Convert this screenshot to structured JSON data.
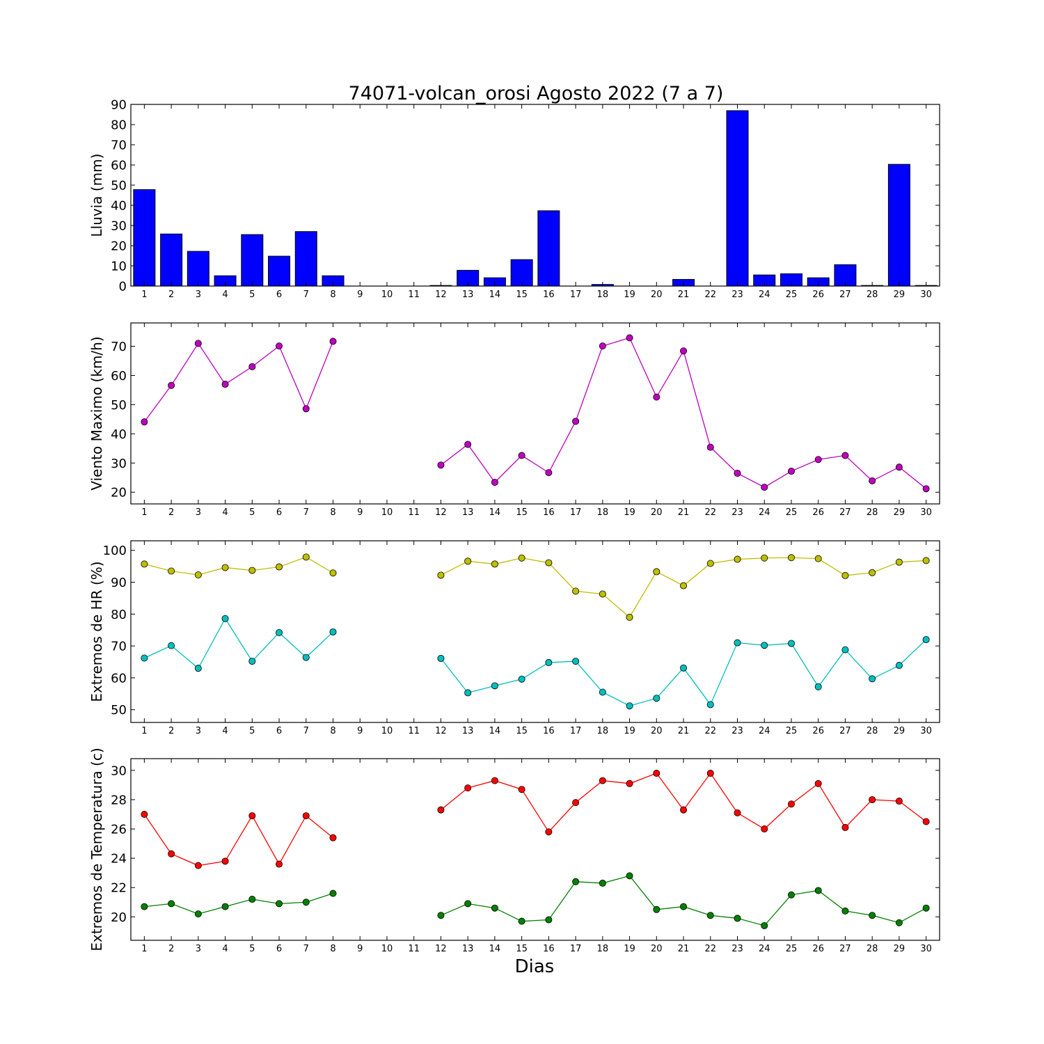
{
  "title": "74071-volcan_orosi Agosto 2022  (7 a 7)",
  "xlabel": "Dias",
  "chart_data": [
    {
      "type": "bar",
      "ylabel": "Lluvia (mm)",
      "x": [
        1,
        2,
        3,
        4,
        5,
        6,
        7,
        8,
        9,
        10,
        11,
        12,
        13,
        14,
        15,
        16,
        17,
        18,
        19,
        20,
        21,
        22,
        23,
        24,
        25,
        26,
        27,
        28,
        29,
        30
      ],
      "ylim": [
        0,
        90
      ],
      "yticks": [
        0,
        10,
        20,
        30,
        40,
        50,
        60,
        70,
        80,
        90
      ],
      "ytick_format": "int",
      "series": [
        {
          "color": "#0000ff",
          "values": [
            47.8,
            25.8,
            17.2,
            5.1,
            25.5,
            14.8,
            27.0,
            5.1,
            0,
            0,
            0,
            0.3,
            7.8,
            4.1,
            13.1,
            37.3,
            0,
            0.8,
            0,
            0,
            3.3,
            0,
            86.9,
            5.5,
            6.1,
            4.1,
            10.6,
            0.3,
            60.3,
            0.3
          ]
        }
      ]
    },
    {
      "type": "line",
      "ylabel": "Viento Maximo (km/h)",
      "x": [
        1,
        2,
        3,
        4,
        5,
        6,
        7,
        8,
        9,
        10,
        11,
        12,
        13,
        14,
        15,
        16,
        17,
        18,
        19,
        20,
        21,
        22,
        23,
        24,
        25,
        26,
        27,
        28,
        29,
        30
      ],
      "ylim": [
        16,
        78
      ],
      "yticks": [
        20,
        30,
        40,
        50,
        60,
        70
      ],
      "ytick_format": "int",
      "series": [
        {
          "color": "#bf00bf",
          "values": [
            44.1,
            56.6,
            71.0,
            57.0,
            63.0,
            70.1,
            48.6,
            71.7,
            null,
            null,
            null,
            29.3,
            36.4,
            23.4,
            32.6,
            26.7,
            44.3,
            70.1,
            72.9,
            52.6,
            68.4,
            35.4,
            26.5,
            21.7,
            27.2,
            31.2,
            32.6,
            23.9,
            28.6,
            21.2
          ]
        }
      ]
    },
    {
      "type": "line",
      "ylabel": "Extremos de HR (%)",
      "x": [
        1,
        2,
        3,
        4,
        5,
        6,
        7,
        8,
        9,
        10,
        11,
        12,
        13,
        14,
        15,
        16,
        17,
        18,
        19,
        20,
        21,
        22,
        23,
        24,
        25,
        26,
        27,
        28,
        29,
        30
      ],
      "ylim": [
        46,
        103
      ],
      "yticks": [
        50,
        60,
        70,
        80,
        90,
        100
      ],
      "ytick_format": "int",
      "series": [
        {
          "color": "#bfbf00",
          "values": [
            95.7,
            93.5,
            92.3,
            94.6,
            93.7,
            94.8,
            97.9,
            92.9,
            null,
            null,
            null,
            92.2,
            96.6,
            95.7,
            97.6,
            96.1,
            87.2,
            86.3,
            79.0,
            93.3,
            88.9,
            95.9,
            97.2,
            97.6,
            97.7,
            97.4,
            92.1,
            93.0,
            96.3,
            96.8
          ]
        },
        {
          "color": "#00bfbf",
          "values": [
            66.2,
            70.1,
            63.0,
            78.6,
            65.2,
            74.2,
            66.4,
            74.4,
            null,
            null,
            null,
            66.1,
            55.3,
            57.5,
            59.6,
            64.8,
            65.2,
            55.5,
            51.2,
            53.6,
            63.1,
            51.6,
            71.0,
            70.2,
            70.8,
            57.2,
            68.8,
            59.7,
            63.9,
            72.0
          ]
        }
      ]
    },
    {
      "type": "line",
      "ylabel": "Extremos de Temperatura (c)",
      "x": [
        1,
        2,
        3,
        4,
        5,
        6,
        7,
        8,
        9,
        10,
        11,
        12,
        13,
        14,
        15,
        16,
        17,
        18,
        19,
        20,
        21,
        22,
        23,
        24,
        25,
        26,
        27,
        28,
        29,
        30
      ],
      "ylim": [
        18.4,
        30.8
      ],
      "yticks": [
        20,
        22,
        24,
        26,
        28,
        30
      ],
      "ytick_format": "int",
      "series": [
        {
          "color": "#ff0000",
          "values": [
            27.0,
            24.3,
            23.5,
            23.8,
            26.9,
            23.6,
            26.9,
            25.4,
            null,
            null,
            null,
            27.3,
            28.8,
            29.3,
            28.7,
            25.8,
            27.8,
            29.3,
            29.1,
            29.8,
            27.3,
            29.8,
            27.1,
            26.0,
            27.7,
            29.1,
            26.1,
            28.0,
            27.9,
            26.5
          ]
        },
        {
          "color": "#008000",
          "values": [
            20.7,
            20.9,
            20.2,
            20.7,
            21.2,
            20.9,
            21.0,
            21.6,
            null,
            null,
            null,
            20.1,
            20.9,
            20.6,
            19.7,
            19.8,
            22.4,
            22.3,
            22.8,
            20.5,
            20.7,
            20.1,
            19.9,
            19.4,
            21.5,
            21.8,
            20.4,
            20.1,
            19.6,
            20.6
          ]
        }
      ]
    }
  ]
}
